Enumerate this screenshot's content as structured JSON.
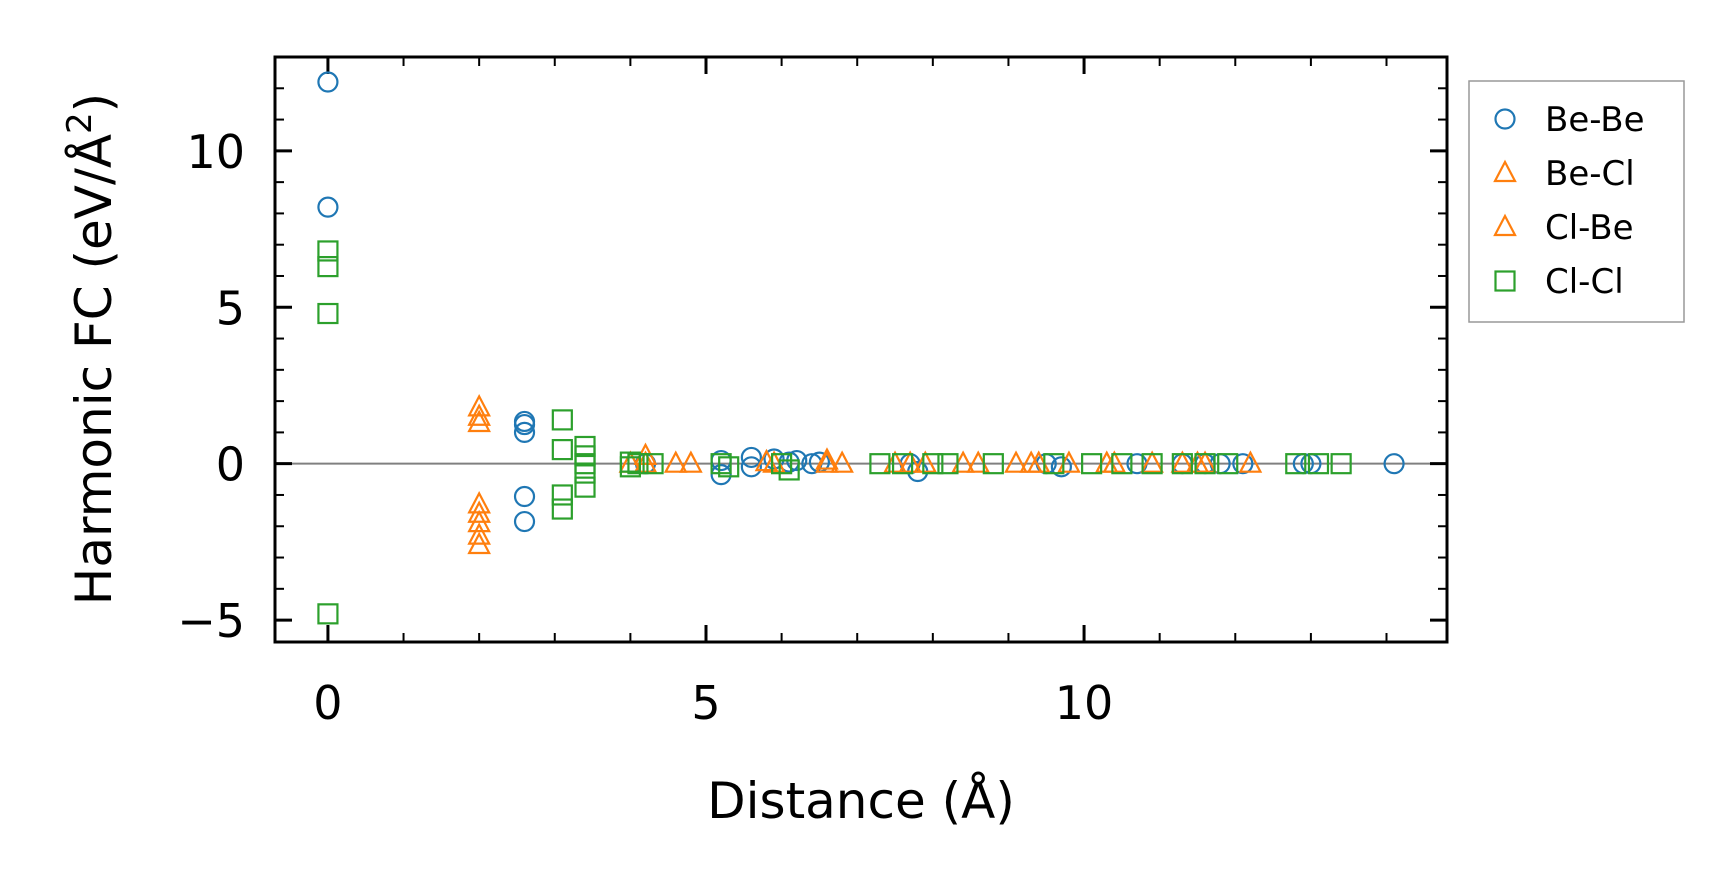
{
  "chart_data": {
    "type": "scatter",
    "title": "",
    "xlabel": "Distance (Å)",
    "ylabel_main": "Harmonic FC (eV/Å",
    "ylabel_sup": "2",
    "ylabel_close": ")",
    "xlim": [
      -0.7,
      14.8
    ],
    "ylim": [
      -5.7,
      13.0
    ],
    "x_ticks": [
      0,
      5,
      10
    ],
    "x_tick_labels": [
      "0",
      "5",
      "10"
    ],
    "x_minor_step": 1,
    "y_ticks": [
      -5,
      0,
      5,
      10
    ],
    "y_tick_labels": [
      "−5",
      "0",
      "5",
      "10"
    ],
    "y_minor_step": 1,
    "zero_line": true,
    "grid": false,
    "legend_position": "outside-right",
    "series": [
      {
        "name": "Be-Be",
        "marker": "circle",
        "color": "#1f77b4",
        "points": [
          [
            0,
            12.2
          ],
          [
            0,
            8.2
          ],
          [
            2.6,
            1.35
          ],
          [
            2.6,
            1.25
          ],
          [
            2.6,
            1.0
          ],
          [
            2.6,
            -1.05
          ],
          [
            2.6,
            -1.85
          ],
          [
            4.2,
            0
          ],
          [
            5.2,
            0.1
          ],
          [
            5.2,
            -0.35
          ],
          [
            5.6,
            0.2
          ],
          [
            5.6,
            -0.1
          ],
          [
            5.9,
            0.15
          ],
          [
            6.1,
            0.05
          ],
          [
            6.2,
            0.1
          ],
          [
            6.4,
            0
          ],
          [
            6.5,
            0.05
          ],
          [
            7.7,
            0
          ],
          [
            7.8,
            -0.25
          ],
          [
            9.5,
            0
          ],
          [
            9.7,
            -0.1
          ],
          [
            10.7,
            0
          ],
          [
            11.3,
            0
          ],
          [
            11.6,
            0
          ],
          [
            11.8,
            0
          ],
          [
            12.1,
            0
          ],
          [
            12.9,
            0
          ],
          [
            13.0,
            0
          ],
          [
            14.1,
            0
          ]
        ]
      },
      {
        "name": "Be-Cl",
        "marker": "triangle",
        "color": "#ff7f0e",
        "points": [
          [
            2.0,
            1.8
          ],
          [
            2.0,
            1.5
          ],
          [
            2.0,
            1.3
          ],
          [
            2.0,
            -1.3
          ],
          [
            2.0,
            -1.6
          ],
          [
            2.0,
            -1.9
          ],
          [
            2.0,
            -2.3
          ],
          [
            2.0,
            -2.6
          ],
          [
            4.2,
            0.25
          ],
          [
            4.2,
            0.0
          ],
          [
            4.6,
            0
          ],
          [
            4.8,
            0
          ],
          [
            5.8,
            0.05
          ],
          [
            6.6,
            0.1
          ],
          [
            6.8,
            0
          ],
          [
            7.5,
            0
          ],
          [
            7.7,
            0
          ],
          [
            7.9,
            0
          ],
          [
            8.4,
            0
          ],
          [
            9.1,
            0
          ],
          [
            9.4,
            0
          ],
          [
            9.8,
            0
          ],
          [
            10.3,
            0
          ],
          [
            10.9,
            0
          ],
          [
            11.3,
            0
          ],
          [
            11.6,
            0
          ],
          [
            12.2,
            0
          ]
        ]
      },
      {
        "name": "Cl-Be",
        "marker": "triangle",
        "color": "#ff7f0e",
        "points": [
          [
            4.0,
            0
          ],
          [
            5.9,
            0
          ],
          [
            6.6,
            0
          ],
          [
            8.6,
            0
          ],
          [
            9.3,
            0
          ],
          [
            10.4,
            0
          ],
          [
            11.5,
            0
          ]
        ]
      },
      {
        "name": "Cl-Cl",
        "marker": "square",
        "color": "#2ca02c",
        "points": [
          [
            0,
            6.8
          ],
          [
            0,
            6.3
          ],
          [
            0,
            4.8
          ],
          [
            0,
            -4.8
          ],
          [
            3.1,
            1.4
          ],
          [
            3.1,
            0.45
          ],
          [
            3.1,
            -1.0
          ],
          [
            3.1,
            -1.45
          ],
          [
            3.4,
            0.55
          ],
          [
            3.4,
            0.25
          ],
          [
            3.4,
            0.0
          ],
          [
            3.4,
            -0.3
          ],
          [
            3.4,
            -0.75
          ],
          [
            4.0,
            0.05
          ],
          [
            4.0,
            -0.1
          ],
          [
            4.1,
            0
          ],
          [
            4.3,
            0
          ],
          [
            5.2,
            0
          ],
          [
            5.3,
            -0.1
          ],
          [
            6.0,
            0
          ],
          [
            6.1,
            -0.2
          ],
          [
            7.3,
            0
          ],
          [
            7.6,
            0
          ],
          [
            8.0,
            0
          ],
          [
            8.2,
            0
          ],
          [
            8.8,
            0
          ],
          [
            9.6,
            0
          ],
          [
            10.1,
            0
          ],
          [
            10.5,
            0
          ],
          [
            10.9,
            0
          ],
          [
            11.3,
            0
          ],
          [
            11.6,
            0
          ],
          [
            11.9,
            0
          ],
          [
            12.8,
            0
          ],
          [
            13.1,
            0
          ],
          [
            13.4,
            0
          ]
        ]
      }
    ],
    "legend": [
      "Be-Be",
      "Be-Cl",
      "Cl-Be",
      "Cl-Cl"
    ]
  }
}
